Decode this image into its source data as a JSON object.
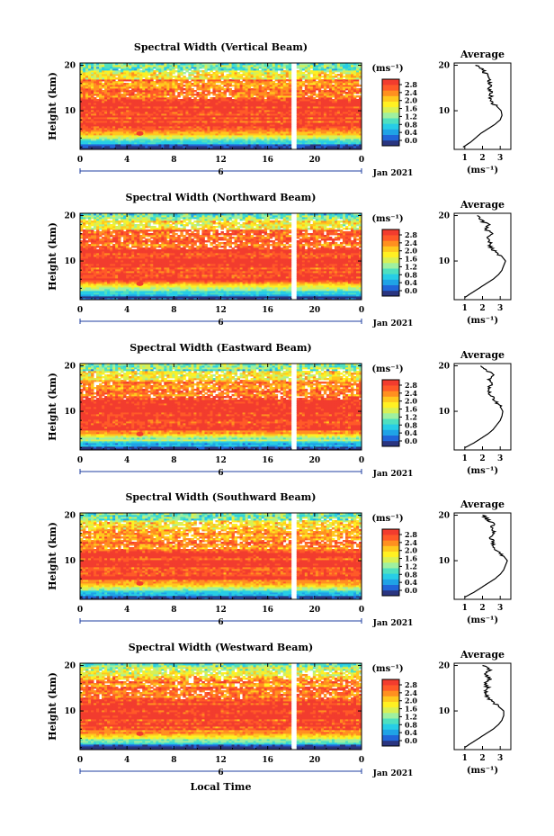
{
  "figure": {
    "xlabel": "Local Time",
    "date_label": "Jan 2021",
    "day_label": "6",
    "colorbar_unit": "(ms⁻¹)",
    "avg_title": "Average",
    "avg_xlabel": "(ms⁻¹)",
    "ylabel": "Height (km)"
  },
  "colors": {
    "scale": [
      "#2a3580",
      "#2166d9",
      "#1fa3e6",
      "#27cde6",
      "#4fe0c0",
      "#9ff0a0",
      "#d8f055",
      "#fff022",
      "#ffc81e",
      "#ff9020",
      "#ff5a28",
      "#f23c2e"
    ],
    "gap": "#ffffff",
    "axis": "#000000",
    "bracket": "#1f3fa0"
  },
  "chart_data": [
    {
      "type": "heatmap",
      "title": "Spectral Width (Vertical Beam)",
      "x_ticks": [
        "0",
        "4",
        "8",
        "12",
        "16",
        "20",
        "0"
      ],
      "y_ticks": [
        "20",
        "10"
      ],
      "xlim": [
        0,
        24
      ],
      "ylim": [
        1.5,
        20.5
      ],
      "colorbar": {
        "ticks": [
          "2.8",
          "2.4",
          "2.0",
          "1.6",
          "1.2",
          "0.8",
          "0.4",
          "0.0"
        ],
        "range": [
          0,
          3.0
        ]
      },
      "data_gap_hours": [
        18.1,
        18.4
      ],
      "average_profile": {
        "x_ticks": [
          "1",
          "2",
          "3"
        ],
        "y_ticks": [
          "20",
          "10"
        ],
        "xlim": [
          0.4,
          3.6
        ],
        "heights": [
          2,
          3,
          4,
          5,
          6,
          7,
          8,
          9,
          10,
          11,
          12,
          13,
          14,
          15,
          16,
          17,
          18,
          19,
          20
        ],
        "values": [
          0.9,
          1.3,
          1.6,
          1.9,
          2.3,
          2.7,
          3.0,
          3.1,
          3.05,
          2.8,
          2.5,
          2.45,
          2.5,
          2.4,
          2.45,
          2.3,
          2.2,
          2.0,
          1.6
        ]
      }
    },
    {
      "type": "heatmap",
      "title": "Spectral Width (Northward Beam)",
      "x_ticks": [
        "0",
        "4",
        "8",
        "12",
        "16",
        "20",
        "0"
      ],
      "y_ticks": [
        "20",
        "10"
      ],
      "xlim": [
        0,
        24
      ],
      "ylim": [
        1.5,
        20.5
      ],
      "colorbar": {
        "ticks": [
          "2.8",
          "2.4",
          "2.0",
          "1.6",
          "1.2",
          "0.8",
          "0.4",
          "0.0"
        ],
        "range": [
          0,
          3.0
        ]
      },
      "data_gap_hours": [
        18.1,
        18.4
      ],
      "average_profile": {
        "x_ticks": [
          "1",
          "2",
          "3"
        ],
        "y_ticks": [
          "20",
          "10"
        ],
        "xlim": [
          0.4,
          3.6
        ],
        "heights": [
          2,
          3,
          4,
          5,
          6,
          7,
          8,
          9,
          10,
          11,
          12,
          13,
          14,
          15,
          16,
          17,
          18,
          19,
          20
        ],
        "values": [
          1.0,
          1.4,
          1.8,
          2.2,
          2.6,
          2.9,
          3.1,
          3.2,
          3.3,
          3.1,
          2.7,
          2.5,
          2.4,
          2.3,
          2.5,
          2.2,
          2.3,
          1.9,
          1.7
        ]
      }
    },
    {
      "type": "heatmap",
      "title": "Spectral Width (Eastward Beam)",
      "x_ticks": [
        "0",
        "4",
        "8",
        "12",
        "16",
        "20",
        "0"
      ],
      "y_ticks": [
        "20",
        "10"
      ],
      "xlim": [
        0,
        24
      ],
      "ylim": [
        1.5,
        20.5
      ],
      "colorbar": {
        "ticks": [
          "2.8",
          "2.4",
          "2.0",
          "1.6",
          "1.2",
          "0.8",
          "0.4",
          "0.0"
        ],
        "range": [
          0,
          3.0
        ]
      },
      "data_gap_hours": [
        18.1,
        18.4
      ],
      "average_profile": {
        "x_ticks": [
          "1",
          "2",
          "3"
        ],
        "y_ticks": [
          "20",
          "10"
        ],
        "xlim": [
          0.4,
          3.6
        ],
        "heights": [
          2,
          3,
          4,
          5,
          6,
          7,
          8,
          9,
          10,
          11,
          12,
          13,
          14,
          15,
          16,
          17,
          18,
          19,
          20
        ],
        "values": [
          1.0,
          1.5,
          1.9,
          2.3,
          2.6,
          2.8,
          3.0,
          3.1,
          3.15,
          3.0,
          2.8,
          2.6,
          2.4,
          2.3,
          2.5,
          2.4,
          2.6,
          2.2,
          1.9
        ]
      }
    },
    {
      "type": "heatmap",
      "title": "Spectral Width (Southward Beam)",
      "x_ticks": [
        "0",
        "4",
        "8",
        "12",
        "16",
        "20",
        "0"
      ],
      "y_ticks": [
        "20",
        "10"
      ],
      "xlim": [
        0,
        24
      ],
      "ylim": [
        1.5,
        20.5
      ],
      "colorbar": {
        "ticks": [
          "2.8",
          "2.4",
          "2.0",
          "1.6",
          "1.2",
          "0.8",
          "0.4",
          "0.0"
        ],
        "range": [
          0,
          3.0
        ]
      },
      "data_gap_hours": [
        18.1,
        18.4
      ],
      "average_profile": {
        "x_ticks": [
          "1",
          "2",
          "3"
        ],
        "y_ticks": [
          "20",
          "10"
        ],
        "xlim": [
          0.4,
          3.6
        ],
        "heights": [
          2,
          3,
          4,
          5,
          6,
          7,
          8,
          9,
          10,
          11,
          12,
          13,
          14,
          15,
          16,
          17,
          18,
          19,
          20
        ],
        "values": [
          1.0,
          1.5,
          1.9,
          2.3,
          2.7,
          3.0,
          3.2,
          3.3,
          3.4,
          3.2,
          2.9,
          2.7,
          2.6,
          2.5,
          2.7,
          2.5,
          2.6,
          2.3,
          2.0
        ]
      }
    },
    {
      "type": "heatmap",
      "title": "Spectral Width (Westward Beam)",
      "x_ticks": [
        "0",
        "4",
        "8",
        "12",
        "16",
        "20",
        "0"
      ],
      "y_ticks": [
        "20",
        "10"
      ],
      "xlim": [
        0,
        24
      ],
      "ylim": [
        1.5,
        20.5
      ],
      "colorbar": {
        "ticks": [
          "2.8",
          "2.4",
          "2.0",
          "1.6",
          "1.2",
          "0.8",
          "0.4",
          "0.0"
        ],
        "range": [
          0,
          3.0
        ]
      },
      "data_gap_hours": [
        18.1,
        18.4
      ],
      "average_profile": {
        "x_ticks": [
          "1",
          "2",
          "3"
        ],
        "y_ticks": [
          "20",
          "10"
        ],
        "xlim": [
          0.4,
          3.6
        ],
        "heights": [
          2,
          3,
          4,
          5,
          6,
          7,
          8,
          9,
          10,
          11,
          12,
          13,
          14,
          15,
          16,
          17,
          18,
          19,
          20
        ],
        "values": [
          1.0,
          1.4,
          1.8,
          2.2,
          2.6,
          2.9,
          3.1,
          3.2,
          3.2,
          2.9,
          2.6,
          2.3,
          2.1,
          2.3,
          2.2,
          2.4,
          2.2,
          2.4,
          2.0
        ]
      }
    }
  ]
}
